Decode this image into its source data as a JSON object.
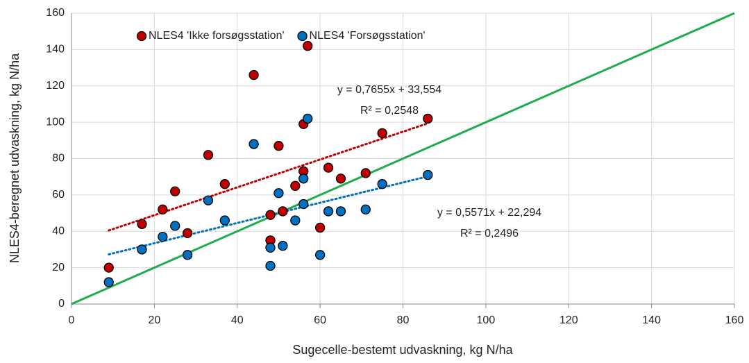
{
  "chart_data": {
    "type": "scatter",
    "x_label": "Sugecelle-bestemt udvaskning, kg N/ha",
    "y_label": "NLES4-beregnet udvaskning, kg N/ha",
    "x": [
      9,
      17,
      22,
      25,
      28,
      33,
      37,
      44,
      48,
      48,
      50,
      51,
      54,
      56,
      56,
      57,
      60,
      62,
      65,
      71,
      75,
      86
    ],
    "series": [
      {
        "name": "NLES4 'Ikke forsøgsstation'",
        "color": "#c00000",
        "values": [
          20,
          44,
          52,
          62,
          39,
          82,
          66,
          126,
          49,
          35,
          87,
          51,
          65,
          73,
          99,
          142,
          42,
          75,
          69,
          72,
          94,
          102
        ],
        "trendline": {
          "equation": "y = 0,7655x + 33,554",
          "r2": "R² = 0,2548",
          "slope": 0.7655,
          "intercept": 33.554
        }
      },
      {
        "name": "NLES4 'Forsøgsstation'",
        "color": "#0070c0",
        "values": [
          12,
          30,
          37,
          43,
          27,
          57,
          46,
          88,
          31,
          21,
          61,
          32,
          46,
          69,
          55,
          102,
          27,
          51,
          51,
          52,
          66,
          71
        ],
        "trendline": {
          "equation": "y = 0,5571x + 22,294",
          "r2": "R² = 0,2496",
          "slope": 0.5571,
          "intercept": 22.294
        }
      }
    ],
    "xlim": [
      0,
      160
    ],
    "ylim": [
      0,
      160
    ],
    "xticks": [
      0,
      20,
      40,
      60,
      80,
      100,
      120,
      140,
      160
    ],
    "yticks": [
      0,
      20,
      40,
      60,
      80,
      100,
      120,
      140,
      160
    ],
    "grid": true,
    "identity_line": true,
    "identity_color": "#1fad4b",
    "legend": "top-left"
  }
}
